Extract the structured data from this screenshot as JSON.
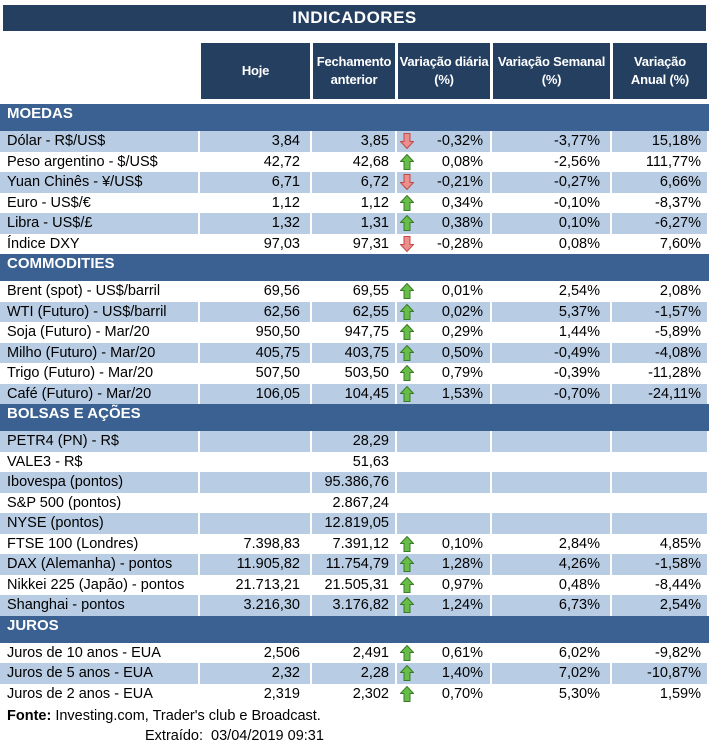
{
  "title": "INDICADORES",
  "columns": [
    "Hoje",
    "Fechamento\nanterior",
    "Variação diária\n(%)",
    "Variação Semanal\n(%)",
    "Variação\nAnual (%)"
  ],
  "sections": [
    {
      "name": "MOEDAS",
      "zebra_start": "shaded",
      "rows": [
        {
          "label": "Dólar - R$/US$",
          "hoje": "3,84",
          "fechamento": "3,85",
          "arrow": "down",
          "diaria": "-0,32%",
          "semanal": "-3,77%",
          "anual": "15,18%"
        },
        {
          "label": "Peso argentino - $/US$",
          "hoje": "42,72",
          "fechamento": "42,68",
          "arrow": "up",
          "diaria": "0,08%",
          "semanal": "-2,56%",
          "anual": "111,77%"
        },
        {
          "label": "Yuan Chinês - ¥/US$",
          "hoje": "6,71",
          "fechamento": "6,72",
          "arrow": "down",
          "diaria": "-0,21%",
          "semanal": "-0,27%",
          "anual": "6,66%"
        },
        {
          "label": "Euro - US$/€",
          "hoje": "1,12",
          "fechamento": "1,12",
          "arrow": "up",
          "diaria": "0,34%",
          "semanal": "-0,10%",
          "anual": "-8,37%"
        },
        {
          "label": "Libra - US$/£",
          "hoje": "1,32",
          "fechamento": "1,31",
          "arrow": "up",
          "diaria": "0,38%",
          "semanal": "0,10%",
          "anual": "-6,27%"
        },
        {
          "label": "Índice DXY",
          "hoje": "97,03",
          "fechamento": "97,31",
          "arrow": "down",
          "diaria": "-0,28%",
          "semanal": "0,08%",
          "anual": "7,60%"
        }
      ]
    },
    {
      "name": "COMMODITIES",
      "zebra_start": "white",
      "rows": [
        {
          "label": "Brent (spot) - US$/barril",
          "hoje": "69,56",
          "fechamento": "69,55",
          "arrow": "up",
          "diaria": "0,01%",
          "semanal": "2,54%",
          "anual": "2,08%"
        },
        {
          "label": "WTI (Futuro) - US$/barril",
          "hoje": "62,56",
          "fechamento": "62,55",
          "arrow": "up",
          "diaria": "0,02%",
          "semanal": "5,37%",
          "anual": "-1,57%"
        },
        {
          "label": "Soja (Futuro) - Mar/20",
          "hoje": "950,50",
          "fechamento": "947,75",
          "arrow": "up",
          "diaria": "0,29%",
          "semanal": "1,44%",
          "anual": "-5,89%"
        },
        {
          "label": "Milho (Futuro) - Mar/20",
          "hoje": "405,75",
          "fechamento": "403,75",
          "arrow": "up",
          "diaria": "0,50%",
          "semanal": "-0,49%",
          "anual": "-4,08%"
        },
        {
          "label": "Trigo (Futuro) - Mar/20",
          "hoje": "507,50",
          "fechamento": "503,50",
          "arrow": "up",
          "diaria": "0,79%",
          "semanal": "-0,39%",
          "anual": "-11,28%"
        },
        {
          "label": "Café (Futuro) - Mar/20",
          "hoje": "106,05",
          "fechamento": "104,45",
          "arrow": "up",
          "diaria": "1,53%",
          "semanal": "-0,70%",
          "anual": "-24,11%"
        }
      ]
    },
    {
      "name": "BOLSAS E AÇÕES",
      "zebra_start": "shaded",
      "rows": [
        {
          "label": "PETR4 (PN) - R$",
          "hoje": "",
          "fechamento": "28,29",
          "arrow": "",
          "diaria": "",
          "semanal": "",
          "anual": ""
        },
        {
          "label": "VALE3 - R$",
          "hoje": "",
          "fechamento": "51,63",
          "arrow": "",
          "diaria": "",
          "semanal": "",
          "anual": ""
        },
        {
          "label": "Ibovespa (pontos)",
          "hoje": "",
          "fechamento": "95.386,76",
          "arrow": "",
          "diaria": "",
          "semanal": "",
          "anual": ""
        },
        {
          "label": "S&P 500 (pontos)",
          "hoje": "",
          "fechamento": "2.867,24",
          "arrow": "",
          "diaria": "",
          "semanal": "",
          "anual": ""
        },
        {
          "label": "NYSE (pontos)",
          "hoje": "",
          "fechamento": "12.819,05",
          "arrow": "",
          "diaria": "",
          "semanal": "",
          "anual": ""
        },
        {
          "label": "FTSE 100 (Londres)",
          "hoje": "7.398,83",
          "fechamento": "7.391,12",
          "arrow": "up",
          "diaria": "0,10%",
          "semanal": "2,84%",
          "anual": "4,85%"
        },
        {
          "label": "DAX (Alemanha) - pontos",
          "hoje": "11.905,82",
          "fechamento": "11.754,79",
          "arrow": "up",
          "diaria": "1,28%",
          "semanal": "4,26%",
          "anual": "-1,58%"
        },
        {
          "label": "Nikkei 225 (Japão) - pontos",
          "hoje": "21.713,21",
          "fechamento": "21.505,31",
          "arrow": "up",
          "diaria": "0,97%",
          "semanal": "0,48%",
          "anual": "-8,44%"
        },
        {
          "label": "Shanghai - pontos",
          "hoje": "3.216,30",
          "fechamento": "3.176,82",
          "arrow": "up",
          "diaria": "1,24%",
          "semanal": "6,73%",
          "anual": "2,54%"
        }
      ]
    },
    {
      "name": "JUROS",
      "zebra_start": "white",
      "rows": [
        {
          "label": "Juros de 10 anos - EUA",
          "hoje": "2,506",
          "fechamento": "2,491",
          "arrow": "up",
          "diaria": "0,61%",
          "semanal": "6,02%",
          "anual": "-9,82%"
        },
        {
          "label": "Juros de 5 anos - EUA",
          "hoje": "2,32",
          "fechamento": "2,28",
          "arrow": "up",
          "diaria": "1,40%",
          "semanal": "7,02%",
          "anual": "-10,87%"
        },
        {
          "label": "Juros de 2 anos - EUA",
          "hoje": "2,319",
          "fechamento": "2,302",
          "arrow": "up",
          "diaria": "0,70%",
          "semanal": "5,30%",
          "anual": "1,59%"
        }
      ]
    }
  ],
  "footer": {
    "fonte_label": "Fonte:",
    "fonte_text": " Investing.com, Trader's club e Broadcast.",
    "extraido_label": "Extraído:",
    "extraido_value": "03/04/2019 09:31"
  },
  "colors": {
    "header_navy": "#243F60",
    "section_blue": "#3A6191",
    "row_shaded": "#B8CCE4",
    "row_white": "#FFFFFF",
    "header_text": "#FFFFFF",
    "body_text": "#000000",
    "up_arrow_fill": "#67BD48",
    "up_arrow_border": "#3A7A28",
    "down_arrow_fill": "#EC8E8C",
    "down_arrow_border": "#BE4B48"
  }
}
